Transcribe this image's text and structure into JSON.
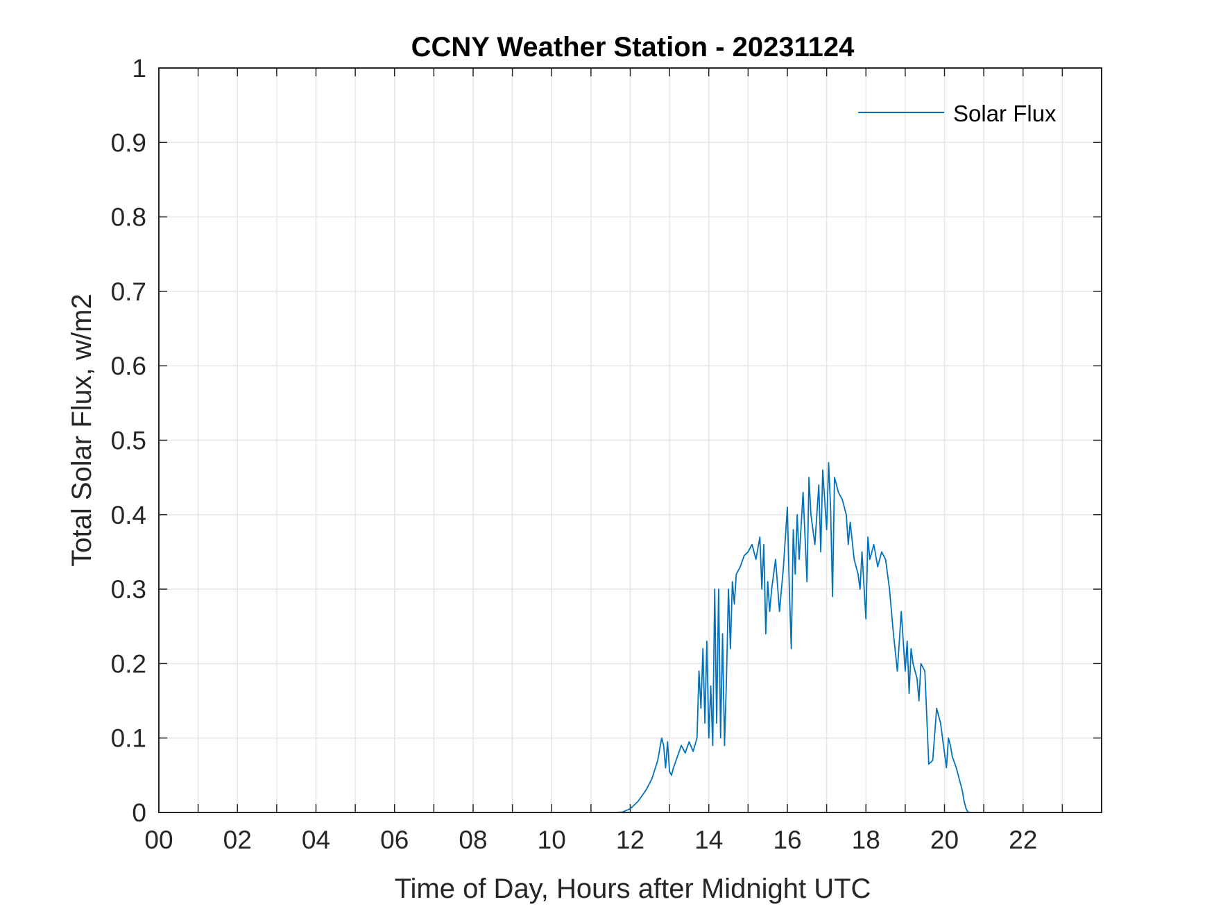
{
  "chart_data": {
    "type": "line",
    "title": "CCNY Weather Station - 20231124",
    "xlabel": "Time of Day, Hours after Midnight UTC",
    "ylabel": "Total Solar Flux, w/m2",
    "xlim": [
      0,
      24
    ],
    "ylim": [
      0,
      1
    ],
    "xticks": [
      0,
      2,
      4,
      6,
      8,
      10,
      12,
      14,
      16,
      18,
      20,
      22
    ],
    "xtick_labels": [
      "00",
      "02",
      "04",
      "06",
      "08",
      "10",
      "12",
      "14",
      "16",
      "18",
      "20",
      "22"
    ],
    "yticks": [
      0,
      0.1,
      0.2,
      0.3,
      0.4,
      0.5,
      0.6,
      0.7,
      0.8,
      0.9,
      1
    ],
    "ytick_labels": [
      "0",
      "0.1",
      "0.2",
      "0.3",
      "0.4",
      "0.5",
      "0.6",
      "0.7",
      "0.8",
      "0.9",
      "1"
    ],
    "grid": true,
    "legend_position": "top-right",
    "colors": {
      "series": "#0072BD",
      "grid": "#e6e6e6",
      "axis": "#262626"
    },
    "series": [
      {
        "name": "Solar Flux",
        "x": [
          0,
          11.6,
          11.8,
          12.0,
          12.2,
          12.4,
          12.55,
          12.7,
          12.8,
          12.85,
          12.9,
          12.95,
          13.0,
          13.05,
          13.1,
          13.2,
          13.3,
          13.4,
          13.5,
          13.6,
          13.7,
          13.75,
          13.8,
          13.85,
          13.9,
          13.95,
          14.0,
          14.05,
          14.1,
          14.15,
          14.2,
          14.25,
          14.3,
          14.35,
          14.4,
          14.45,
          14.5,
          14.55,
          14.6,
          14.65,
          14.7,
          14.8,
          14.9,
          15.0,
          15.1,
          15.2,
          15.3,
          15.35,
          15.4,
          15.45,
          15.5,
          15.55,
          15.6,
          15.7,
          15.8,
          15.9,
          16.0,
          16.05,
          16.1,
          16.15,
          16.2,
          16.25,
          16.3,
          16.4,
          16.5,
          16.55,
          16.6,
          16.7,
          16.8,
          16.85,
          16.9,
          17.0,
          17.05,
          17.1,
          17.15,
          17.2,
          17.3,
          17.4,
          17.5,
          17.55,
          17.6,
          17.7,
          17.8,
          17.85,
          17.9,
          18.0,
          18.05,
          18.1,
          18.2,
          18.3,
          18.4,
          18.5,
          18.6,
          18.7,
          18.8,
          18.9,
          19.0,
          19.05,
          19.1,
          19.15,
          19.2,
          19.3,
          19.35,
          19.4,
          19.5,
          19.6,
          19.7,
          19.8,
          19.9,
          20.0,
          20.05,
          20.1,
          20.15,
          20.2,
          20.3,
          20.4,
          20.45,
          20.5,
          20.55,
          20.6,
          20.7,
          20.8,
          20.9,
          21.0,
          21.1,
          21.2,
          21.3,
          21.4,
          21.5,
          21.6,
          21.7,
          21.8,
          21.9,
          22.0,
          23.95
        ],
        "y": [
          0,
          0,
          0.0005,
          0.005,
          0.015,
          0.03,
          0.045,
          0.07,
          0.1,
          0.09,
          0.06,
          0.095,
          0.055,
          0.05,
          0.06,
          0.075,
          0.09,
          0.08,
          0.095,
          0.082,
          0.1,
          0.19,
          0.14,
          0.22,
          0.12,
          0.23,
          0.1,
          0.17,
          0.09,
          0.3,
          0.12,
          0.3,
          0.1,
          0.24,
          0.09,
          0.18,
          0.3,
          0.22,
          0.31,
          0.28,
          0.32,
          0.33,
          0.345,
          0.35,
          0.36,
          0.34,
          0.37,
          0.3,
          0.36,
          0.24,
          0.31,
          0.27,
          0.3,
          0.34,
          0.27,
          0.33,
          0.41,
          0.3,
          0.22,
          0.38,
          0.32,
          0.4,
          0.34,
          0.43,
          0.31,
          0.45,
          0.4,
          0.36,
          0.44,
          0.35,
          0.46,
          0.38,
          0.47,
          0.41,
          0.29,
          0.45,
          0.43,
          0.42,
          0.4,
          0.36,
          0.39,
          0.34,
          0.32,
          0.3,
          0.35,
          0.26,
          0.37,
          0.34,
          0.36,
          0.33,
          0.35,
          0.34,
          0.3,
          0.24,
          0.19,
          0.27,
          0.19,
          0.23,
          0.16,
          0.22,
          0.2,
          0.18,
          0.15,
          0.2,
          0.19,
          0.065,
          0.07,
          0.14,
          0.12,
          0.08,
          0.06,
          0.1,
          0.09,
          0.075,
          0.06,
          0.04,
          0.03,
          0.015,
          0.005,
          0.0005,
          0,
          0,
          0,
          0,
          0,
          0,
          0,
          0,
          0,
          0,
          0,
          0,
          0,
          0,
          0
        ],
        "_": ""
      }
    ]
  }
}
